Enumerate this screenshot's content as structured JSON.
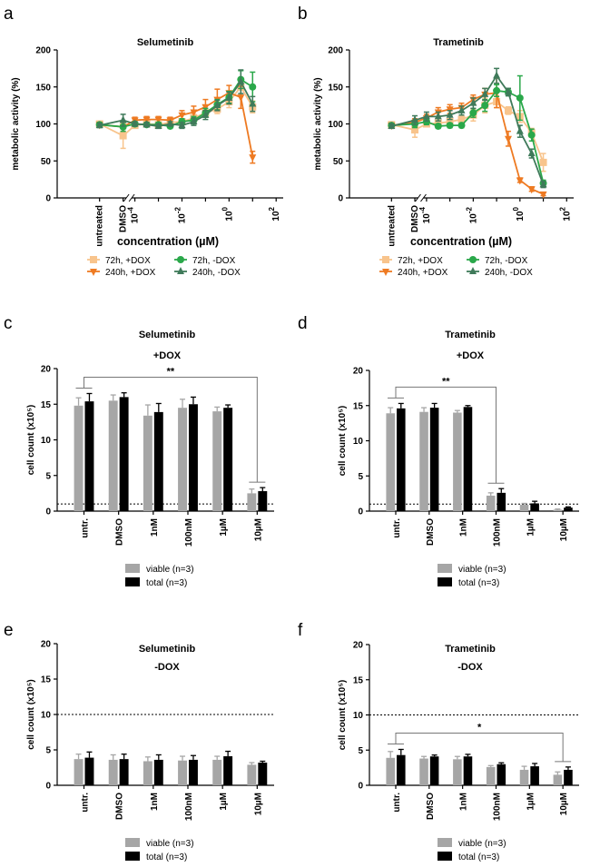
{
  "figure_labels": [
    "a",
    "b",
    "c",
    "d",
    "e",
    "f"
  ],
  "colors": {
    "viable": "#a6a6a6",
    "total": "#000000",
    "c72plus": "#f8c48c",
    "c240plus": "#ee7a22",
    "c72minus": "#2aa84a",
    "c240minus": "#3f7a5a"
  },
  "chart_data": [
    {
      "type": "line",
      "panel": "a",
      "title": "Selumetinib",
      "xlabel": "concentration (µM)",
      "ylabel": "metabolic activity (%)",
      "ylim": [
        0,
        200
      ],
      "yticks": [
        "0",
        "50",
        "100",
        "150",
        "200"
      ],
      "xscale": "log",
      "xlim_exp": [
        -7.3,
        2.3
      ],
      "x_tick_labels": [
        {
          "label": "10",
          "exp": "-4",
          "value_exp": -4
        },
        {
          "label": "10",
          "exp": "-2",
          "value_exp": -2
        },
        {
          "label": "10",
          "exp": "0",
          "value_exp": 0
        },
        {
          "label": "10",
          "exp": "2",
          "value_exp": 2
        }
      ],
      "categorical_labels": [
        "untreated",
        "DMSO"
      ],
      "x": [
        -5.5,
        -4.5,
        -4,
        -3.5,
        -3,
        -2.5,
        -2,
        -1.5,
        -1,
        -0.5,
        0,
        0.5,
        1
      ],
      "series": [
        {
          "name": "72h, +DOX",
          "values": [
            100,
            84,
            98,
            100,
            99,
            102,
            103,
            108,
            115,
            120,
            130,
            150,
            123
          ],
          "err": [
            3,
            17,
            3,
            3,
            3,
            4,
            4,
            5,
            6,
            6,
            8,
            12,
            8
          ]
        },
        {
          "name": "240h, +DOX",
          "values": [
            99,
            96,
            105,
            106,
            106,
            105,
            112,
            116,
            123,
            133,
            142,
            136,
            55
          ],
          "err": [
            3,
            6,
            4,
            4,
            4,
            4,
            6,
            8,
            10,
            14,
            10,
            15,
            8
          ]
        },
        {
          "name": "72h, -DOX",
          "values": [
            99,
            96,
            100,
            99,
            99,
            97,
            103,
            105,
            115,
            126,
            136,
            160,
            150
          ],
          "err": [
            3,
            6,
            3,
            3,
            3,
            3,
            4,
            5,
            6,
            7,
            8,
            12,
            20
          ]
        },
        {
          "name": "240h, -DOX",
          "values": [
            98,
            105,
            100,
            99,
            97,
            100,
            98,
            103,
            112,
            125,
            135,
            157,
            127
          ],
          "err": [
            3,
            8,
            3,
            3,
            3,
            3,
            4,
            5,
            6,
            7,
            8,
            16,
            10
          ]
        }
      ],
      "legend": [
        "72h,  +DOX",
        "240h, +DOX",
        "72h, -DOX",
        "240h, -DOX"
      ]
    },
    {
      "type": "line",
      "panel": "b",
      "title": "Trametinib",
      "xlabel": "concentration (µM)",
      "ylabel": "metabolic activity (%)",
      "ylim": [
        0,
        200
      ],
      "yticks": [
        "0",
        "50",
        "100",
        "150",
        "200"
      ],
      "xscale": "log",
      "xlim_exp": [
        -7.3,
        2.3
      ],
      "x_tick_labels": [
        {
          "label": "10",
          "exp": "-4",
          "value_exp": -4
        },
        {
          "label": "10",
          "exp": "-2",
          "value_exp": -2
        },
        {
          "label": "10",
          "exp": "0",
          "value_exp": 0
        },
        {
          "label": "10",
          "exp": "2",
          "value_exp": 2
        }
      ],
      "categorical_labels": [
        "untreated",
        "DMSO"
      ],
      "x": [
        -5.5,
        -4.5,
        -4,
        -3.5,
        -3,
        -2.5,
        -2,
        -1.5,
        -1,
        -0.5,
        0,
        0.5,
        1
      ],
      "series": [
        {
          "name": "72h, +DOX",
          "values": [
            99,
            92,
            100,
            101,
            103,
            106,
            112,
            125,
            130,
            118,
            110,
            88,
            48
          ],
          "err": [
            3,
            10,
            4,
            4,
            4,
            6,
            8,
            10,
            8,
            5,
            8,
            6,
            12
          ]
        },
        {
          "name": "240h, +DOX",
          "values": [
            98,
            102,
            108,
            116,
            120,
            122,
            133,
            140,
            142,
            80,
            24,
            12,
            5
          ],
          "err": [
            3,
            5,
            5,
            6,
            6,
            6,
            6,
            8,
            20,
            10,
            3,
            3,
            2
          ]
        },
        {
          "name": "72h, -DOX",
          "values": [
            98,
            100,
            103,
            97,
            98,
            98,
            115,
            125,
            145,
            143,
            135,
            85,
            20
          ],
          "err": [
            3,
            5,
            4,
            3,
            3,
            3,
            6,
            8,
            8,
            5,
            30,
            8,
            4
          ]
        },
        {
          "name": "240h, -DOX",
          "values": [
            97,
            105,
            110,
            110,
            112,
            118,
            128,
            140,
            165,
            143,
            90,
            60,
            18
          ],
          "err": [
            3,
            6,
            6,
            6,
            6,
            6,
            7,
            8,
            10,
            5,
            8,
            6,
            4
          ]
        }
      ],
      "legend": [
        "72h,  +DOX",
        "240h, +DOX",
        "72h, -DOX",
        "240h, -DOX"
      ]
    },
    {
      "type": "bar",
      "panel": "c",
      "title": "Selumetinib",
      "subtitle": "+DOX",
      "ylabel": "cell count (x10⁵)",
      "ylim": [
        0,
        20
      ],
      "yticks": [
        "0",
        "5",
        "10",
        "15",
        "20"
      ],
      "categories": [
        "untr.",
        "DMSO",
        "1nM",
        "100nM",
        "1µM",
        "10µM"
      ],
      "series": [
        {
          "name": "viable (n=3)",
          "values": [
            14.8,
            15.5,
            13.4,
            14.5,
            14.0,
            2.5
          ],
          "err": [
            1.1,
            0.8,
            1.5,
            1.2,
            0.6,
            0.6
          ]
        },
        {
          "name": "total (n=3)",
          "values": [
            15.4,
            16.0,
            13.9,
            15.0,
            14.5,
            2.8
          ],
          "err": [
            1.1,
            0.6,
            1.2,
            1.0,
            0.4,
            0.5
          ]
        }
      ],
      "reference_line": 1,
      "significance": {
        "label": "**",
        "from": 0,
        "to": 5
      },
      "legend": [
        "viable (n=3)",
        "total (n=3)"
      ]
    },
    {
      "type": "bar",
      "panel": "d",
      "title": "Trametinib",
      "subtitle": "+DOX",
      "ylabel": "cell count (x10⁵)",
      "ylim": [
        0,
        20
      ],
      "yticks": [
        "0",
        "5",
        "10",
        "15",
        "20"
      ],
      "categories": [
        "untr.",
        "DMSO",
        "1nM",
        "100nM",
        "1µM",
        "10µM"
      ],
      "series": [
        {
          "name": "viable (n=3)",
          "values": [
            13.9,
            14.1,
            14.0,
            2.2,
            0.9,
            0.2
          ],
          "err": [
            0.8,
            0.6,
            0.3,
            0.4,
            0.2,
            0.1
          ]
        },
        {
          "name": "total (n=3)",
          "values": [
            14.6,
            14.7,
            14.8,
            2.6,
            1.1,
            0.5
          ],
          "err": [
            0.7,
            0.6,
            0.2,
            0.6,
            0.3,
            0.1
          ]
        }
      ],
      "reference_line": 1,
      "significance": {
        "label": "**",
        "from": 0,
        "to": 3
      },
      "legend": [
        "viable (n=3)",
        "total (n=3)"
      ]
    },
    {
      "type": "bar",
      "panel": "e",
      "title": "Selumetinib",
      "subtitle": "-DOX",
      "ylabel": "cell count (x10⁵)",
      "ylim": [
        0,
        20
      ],
      "yticks": [
        "0",
        "5",
        "10",
        "15",
        "20"
      ],
      "categories": [
        "untr.",
        "DMSO",
        "1nM",
        "100nM",
        "1µM",
        "10µM"
      ],
      "series": [
        {
          "name": "viable (n=3)",
          "values": [
            3.7,
            3.6,
            3.4,
            3.5,
            3.6,
            2.9
          ],
          "err": [
            0.7,
            0.7,
            0.6,
            0.6,
            0.5,
            0.3
          ]
        },
        {
          "name": "total (n=3)",
          "values": [
            3.9,
            3.7,
            3.6,
            3.6,
            4.1,
            3.2
          ],
          "err": [
            0.8,
            0.7,
            0.7,
            0.6,
            0.7,
            0.2
          ]
        }
      ],
      "reference_line": 10,
      "legend": [
        "viable (n=3)",
        "total (n=3)"
      ]
    },
    {
      "type": "bar",
      "panel": "f",
      "title": "Trametinib",
      "subtitle": "-DOX",
      "ylabel": "cell count (x10⁵)",
      "ylim": [
        0,
        20
      ],
      "yticks": [
        "0",
        "5",
        "10",
        "15",
        "20"
      ],
      "categories": [
        "untr.",
        "DMSO",
        "1nM",
        "100nM",
        "1µM",
        "10µM"
      ],
      "series": [
        {
          "name": "viable (n=3)",
          "values": [
            3.9,
            3.8,
            3.7,
            2.6,
            2.2,
            1.5
          ],
          "err": [
            0.9,
            0.3,
            0.4,
            0.2,
            0.5,
            0.4
          ]
        },
        {
          "name": "total (n=3)",
          "values": [
            4.3,
            4.1,
            4.1,
            3.0,
            2.7,
            2.2
          ],
          "err": [
            0.8,
            0.2,
            0.3,
            0.2,
            0.4,
            0.4
          ]
        }
      ],
      "reference_line": 10,
      "significance": {
        "label": "*",
        "from": 0,
        "to": 5
      },
      "legend": [
        "viable (n=3)",
        "total (n=3)"
      ]
    }
  ]
}
